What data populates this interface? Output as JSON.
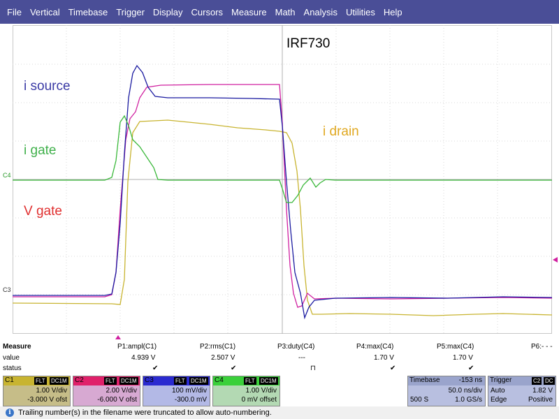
{
  "menu": [
    "File",
    "Vertical",
    "Timebase",
    "Trigger",
    "Display",
    "Cursors",
    "Measure",
    "Math",
    "Analysis",
    "Utilities",
    "Help"
  ],
  "scope": {
    "title": "IRF730",
    "labels": {
      "i_source": "i source",
      "i_gate": "i gate",
      "v_gate": "V gate",
      "i_drain": "i drain"
    },
    "markers": {
      "c4": "C4",
      "c3": "C3"
    },
    "colors": {
      "c1": "#c8b430",
      "c2": "#d020a0",
      "c3": "#1a1aa0",
      "c4": "#3ab83a",
      "menu_bg": "#4a4e97"
    }
  },
  "measure": {
    "row_labels": [
      "Measure",
      "value",
      "status"
    ],
    "columns": [
      {
        "name": "P1:ampl(C1)",
        "value": "4.939 V",
        "status": "✔"
      },
      {
        "name": "P2:rms(C1)",
        "value": "2.507 V",
        "status": "✔"
      },
      {
        "name": "P3:duty(C4)",
        "value": "---",
        "status": "⊓"
      },
      {
        "name": "P4:max(C4)",
        "value": "1.70 V",
        "status": "✔"
      },
      {
        "name": "P5:max(C4)",
        "value": "1.70 V",
        "status": "✔"
      },
      {
        "name": "P6:- - -",
        "value": "",
        "status": ""
      }
    ]
  },
  "channels": [
    {
      "tag": "C1",
      "flt": "FLT",
      "coupling": "DC1M",
      "scale": "1.00 V/div",
      "offset": "-3.000 V ofst"
    },
    {
      "tag": "C2",
      "flt": "FLT",
      "coupling": "DC1M",
      "scale": "2.00 V/div",
      "offset": "-6.000 V ofst"
    },
    {
      "tag": "C3",
      "flt": "FLT",
      "coupling": "DC1M",
      "scale": "100 mV/div",
      "offset": "-300.0 mV"
    },
    {
      "tag": "C4",
      "flt": "FLT",
      "coupling": "DC1M",
      "scale": "1.00 V/div",
      "offset": "0 mV offset"
    }
  ],
  "timebase": {
    "label": "Timebase",
    "delay": "-153 ns",
    "div": "50.0 ns/div",
    "samples": "500 S",
    "rate": "1.0 GS/s"
  },
  "trigger": {
    "label": "Trigger",
    "source": "C2",
    "coupling": "DC",
    "mode": "Auto",
    "level": "1.82 V",
    "type": "Edge",
    "slope": "Positive"
  },
  "status_message": "Trailing number(s) in the filename were truncated to allow auto-numbering."
}
